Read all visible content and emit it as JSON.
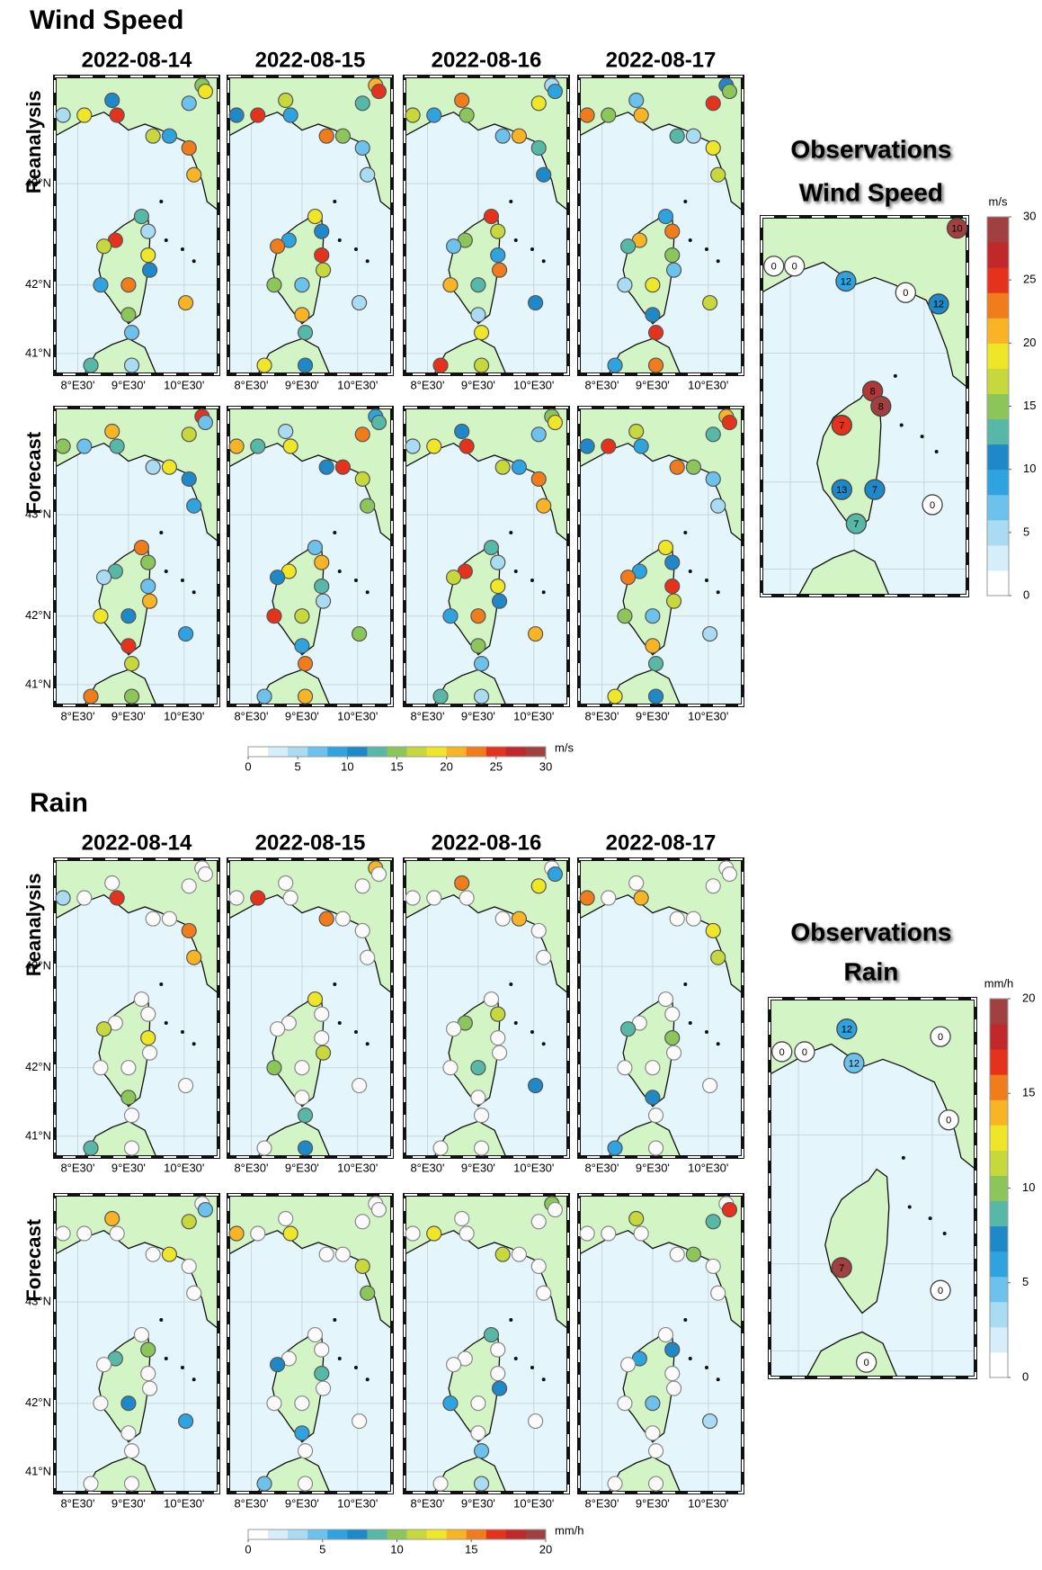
{
  "wind": {
    "title": "Wind Speed",
    "dates": [
      "2022-08-14",
      "2022-08-15",
      "2022-08-16",
      "2022-08-17"
    ],
    "rows": [
      "Reanalysis",
      "Forecast"
    ],
    "lat_labels": [
      "43°N",
      "42°N",
      "41°N"
    ],
    "lon_labels": [
      "8°E30'",
      "9°E30'",
      "10°E30'"
    ],
    "colorbar": {
      "unit": "m/s",
      "lim": [
        0,
        30
      ],
      "ticks": [
        0,
        5,
        10,
        15,
        20,
        25,
        30
      ],
      "colors": [
        "#ffffff",
        "#d6eefa",
        "#a9dcf3",
        "#6cc2ec",
        "#2ea3e0",
        "#1e88c8",
        "#58b8a8",
        "#8cc65a",
        "#c6d83c",
        "#f0e628",
        "#f8b424",
        "#f07c1c",
        "#e4321c",
        "#c0282a",
        "#a04040"
      ]
    },
    "observations": {
      "title": "Observations",
      "subtitle": "Wind Speed",
      "unit": "m/s",
      "lim": [
        0,
        30
      ],
      "ticks": [
        0,
        5,
        10,
        15,
        20,
        25,
        30
      ],
      "stations": [
        {
          "label": "0",
          "color": "#ffffff"
        },
        {
          "label": "0",
          "color": "#ffffff"
        },
        {
          "label": "12",
          "color": "#2ea3e0"
        },
        {
          "label": "0",
          "color": "#ffffff"
        },
        {
          "label": "12",
          "color": "#1e88c8"
        },
        {
          "label": "8",
          "color": "#b03838"
        },
        {
          "label": "8",
          "color": "#a04040"
        },
        {
          "label": "7",
          "color": "#e4321c"
        },
        {
          "label": "7",
          "color": "#1e88c8"
        },
        {
          "label": "13",
          "color": "#1e88c8"
        },
        {
          "label": "0",
          "color": "#ffffff"
        },
        {
          "label": "7",
          "color": "#58b8a8"
        },
        {
          "label": "10",
          "color": "#a04040"
        }
      ]
    }
  },
  "rain": {
    "title": "Rain",
    "dates": [
      "2022-08-14",
      "2022-08-15",
      "2022-08-16",
      "2022-08-17"
    ],
    "rows": [
      "Reanalysis",
      "Forecast"
    ],
    "lat_labels": [
      "43°N",
      "42°N",
      "41°N"
    ],
    "lon_labels": [
      "8°E30'",
      "9°E30'",
      "10°E30'"
    ],
    "colorbar": {
      "unit": "mm/h",
      "lim": [
        0,
        20
      ],
      "ticks": [
        0,
        5,
        10,
        15,
        20
      ],
      "colors": [
        "#ffffff",
        "#d6eefa",
        "#a9dcf3",
        "#6cc2ec",
        "#2ea3e0",
        "#1e88c8",
        "#58b8a8",
        "#8cc65a",
        "#c6d83c",
        "#f0e628",
        "#f8b424",
        "#f07c1c",
        "#e4321c",
        "#c0282a",
        "#a04040"
      ]
    },
    "observations": {
      "title": "Observations",
      "subtitle": "Rain",
      "unit": "mm/h",
      "lim": [
        0,
        20
      ],
      "ticks": [
        0,
        5,
        10,
        15,
        20
      ],
      "stations": [
        {
          "label": "12",
          "color": "#2ea3e0"
        },
        {
          "label": "0",
          "color": "#ffffff"
        },
        {
          "label": "0",
          "color": "#ffffff"
        },
        {
          "label": "12",
          "color": "#6cc2ec"
        },
        {
          "label": "0",
          "color": "#ffffff"
        },
        {
          "label": "0",
          "color": "#ffffff"
        },
        {
          "label": "7",
          "color": "#a04040"
        },
        {
          "label": "0",
          "color": "#ffffff"
        },
        {
          "label": "0",
          "color": "#ffffff"
        }
      ]
    }
  }
}
